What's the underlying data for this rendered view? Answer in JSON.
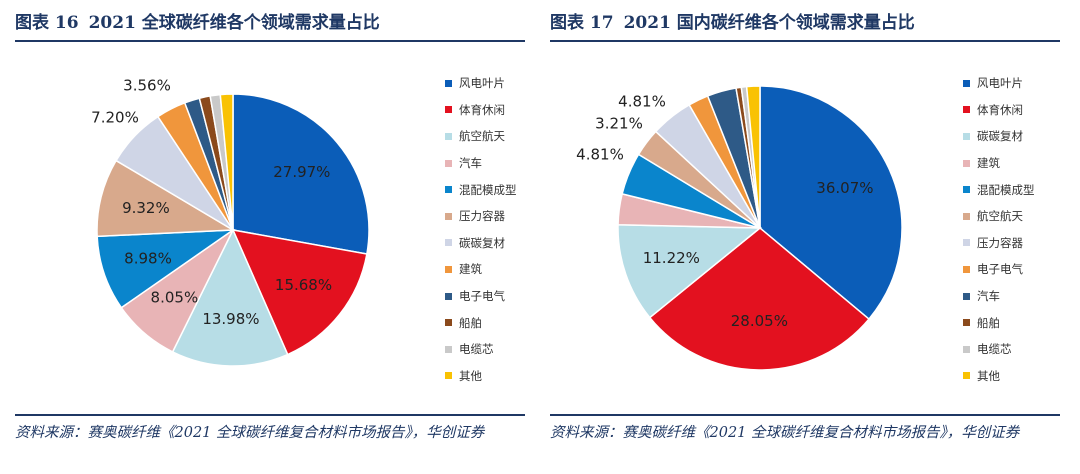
{
  "chart_data": [
    {
      "type": "pie",
      "figure_no": "图表 16",
      "title": "2021 全球碳纤维各个领域需求量占比",
      "categories": [
        "风电叶片",
        "体育休闲",
        "航空航天",
        "汽车",
        "混配模成型",
        "压力容器",
        "碳碳复材",
        "建筑",
        "电子电气",
        "船舶",
        "电缆芯",
        "其他"
      ],
      "values": [
        27.97,
        15.68,
        13.98,
        8.05,
        8.98,
        9.32,
        7.2,
        3.56,
        1.8,
        1.3,
        1.2,
        1.5
      ],
      "labels": [
        "27.97%",
        "15.68%",
        "13.98%",
        "8.05%",
        "8.98%",
        "9.32%",
        "7.20%",
        "3.56%",
        "",
        "",
        "",
        ""
      ],
      "colors": [
        "#0b5db8",
        "#e3111f",
        "#b7dde6",
        "#e8b4b6",
        "#0a85cc",
        "#d8a98c",
        "#cfd5e6",
        "#f0963c",
        "#2e5a87",
        "#8b4a1c",
        "#c9c9c9",
        "#f9c203"
      ],
      "legend_position": "right",
      "source": "资料来源：赛奥碳纤维《2021 全球碳纤维复合材料市场报告》，华创证券"
    },
    {
      "type": "pie",
      "figure_no": "图表 17",
      "title": "2021 国内碳纤维各个领域需求量占比",
      "categories": [
        "风电叶片",
        "体育休闲",
        "碳碳复材",
        "建筑",
        "混配模成型",
        "航空航天",
        "压力容器",
        "电子电气",
        "汽车",
        "船舶",
        "电缆芯",
        "其他"
      ],
      "values": [
        36.07,
        28.05,
        11.22,
        3.5,
        4.81,
        3.21,
        4.81,
        2.3,
        3.3,
        0.6,
        0.6,
        1.5
      ],
      "labels": [
        "36.07%",
        "28.05%",
        "11.22%",
        "",
        "4.81%",
        "3.21%",
        "4.81%",
        "",
        "",
        "",
        "",
        ""
      ],
      "colors": [
        "#0b5db8",
        "#e3111f",
        "#b7dde6",
        "#e8b4b6",
        "#0a85cc",
        "#d8a98c",
        "#cfd5e6",
        "#f0963c",
        "#2e5a87",
        "#8b4a1c",
        "#c9c9c9",
        "#f9c203"
      ],
      "legend_position": "right",
      "source": "资料来源：赛奥碳纤维《2021 全球碳纤维复合材料市场报告》，华创证券"
    }
  ]
}
